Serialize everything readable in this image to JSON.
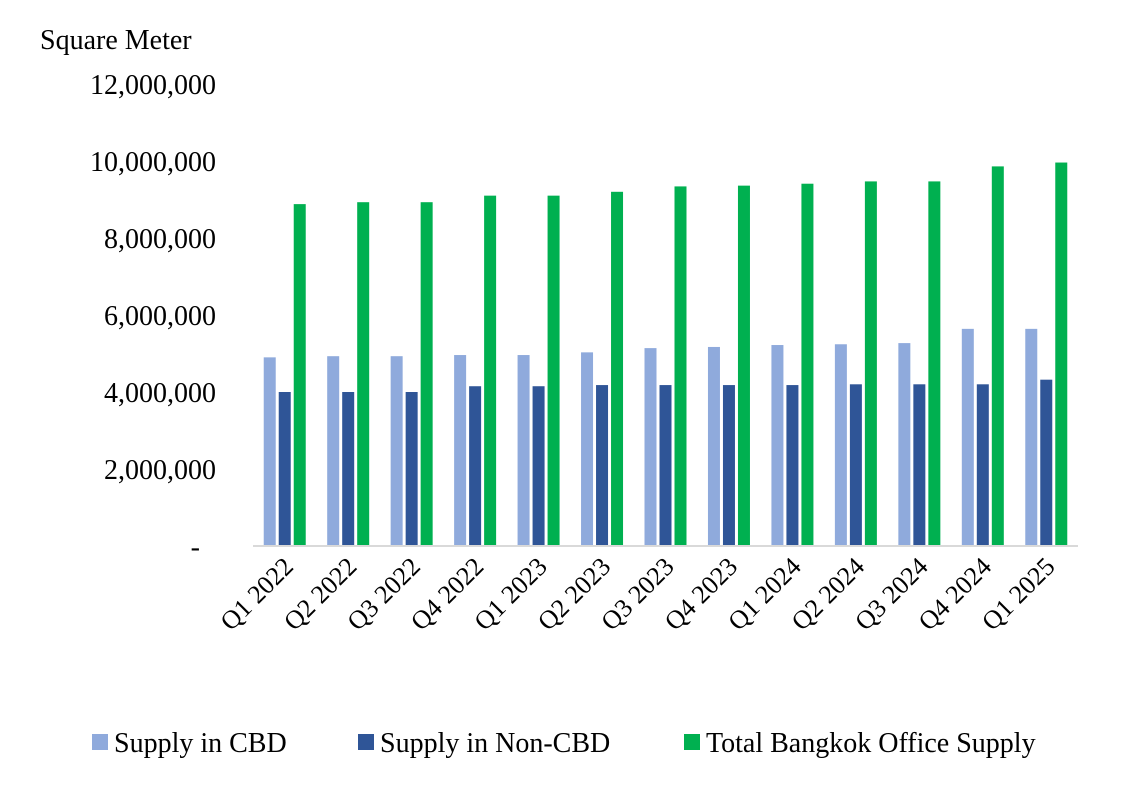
{
  "chart_data": {
    "type": "bar",
    "title": "",
    "ylabel": "Square Meter",
    "xlabel": "",
    "categories": [
      "Q1 2022",
      "Q2 2022",
      "Q3 2022",
      "Q4 2022",
      "Q1 2023",
      "Q2 2023",
      "Q3 2023",
      "Q4 2023",
      "Q1 2024",
      "Q2 2024",
      "Q3 2024",
      "Q4 2024",
      "Q1 2025"
    ],
    "series": [
      {
        "name": "Supply in CBD",
        "color": "#8faadc",
        "values": [
          4900000,
          4930000,
          4930000,
          4960000,
          4960000,
          5030000,
          5140000,
          5170000,
          5220000,
          5240000,
          5270000,
          5640000,
          5640000
        ]
      },
      {
        "name": "Supply in Non-CBD",
        "color": "#2f5597",
        "values": [
          4000000,
          4000000,
          4000000,
          4150000,
          4150000,
          4180000,
          4180000,
          4180000,
          4180000,
          4200000,
          4200000,
          4200000,
          4320000
        ]
      },
      {
        "name": "Total Bangkok Office Supply",
        "color": "#00b050",
        "values": [
          8880000,
          8930000,
          8930000,
          9100000,
          9100000,
          9200000,
          9340000,
          9360000,
          9410000,
          9470000,
          9470000,
          9860000,
          9960000
        ]
      }
    ],
    "ylim": [
      0,
      12000000
    ],
    "yticks": [
      0,
      2000000,
      4000000,
      6000000,
      8000000,
      10000000,
      12000000
    ],
    "ytick_labels": [
      "-",
      "2,000,000",
      "4,000,000",
      "6,000,000",
      "8,000,000",
      "10,000,000",
      "12,000,000"
    ],
    "grid": false,
    "legend_position": "bottom"
  }
}
